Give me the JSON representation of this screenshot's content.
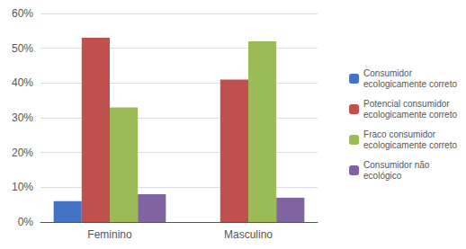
{
  "chart_data": {
    "type": "bar",
    "categories": [
      "Feminino",
      "Masculino"
    ],
    "series": [
      {
        "name": "Consumidor\necologicamente correto",
        "color": "#4472C4",
        "values": [
          0.06,
          0.0
        ]
      },
      {
        "name": "Potencial consumidor\necologicamente correto",
        "color": "#C0504D",
        "values": [
          0.53,
          0.41
        ]
      },
      {
        "name": "Fraco consumidor\necologicamente correto",
        "color": "#9BBB59",
        "values": [
          0.33,
          0.52
        ]
      },
      {
        "name": "Consumidor não\necológico",
        "color": "#8064A2",
        "values": [
          0.08,
          0.07
        ]
      }
    ],
    "ylim": [
      0,
      0.6
    ],
    "yticks": [
      {
        "value": 0.0,
        "label": "0%"
      },
      {
        "value": 0.1,
        "label": "10%"
      },
      {
        "value": 0.2,
        "label": "20%"
      },
      {
        "value": 0.3,
        "label": "30%"
      },
      {
        "value": 0.4,
        "label": "40%"
      },
      {
        "value": 0.5,
        "label": "50%"
      },
      {
        "value": 0.6,
        "label": "60%"
      }
    ],
    "grid": true,
    "legend": "right"
  }
}
